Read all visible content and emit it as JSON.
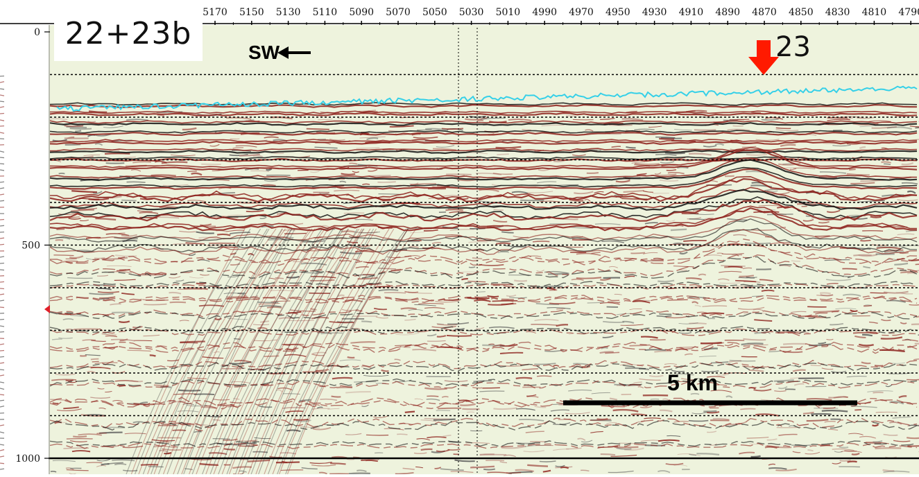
{
  "title": "22+23b",
  "direction_label": "SW",
  "marker": {
    "label": "23",
    "color": "#ff1a00",
    "position_trace": 4870
  },
  "scale_bar": {
    "label": "5 km"
  },
  "trace_axis": {
    "labels": [
      "5170",
      "5150",
      "5130",
      "5110",
      "5090",
      "5070",
      "5050",
      "5030",
      "5010",
      "4990",
      "4970",
      "4950",
      "4930",
      "4910",
      "4890",
      "4870",
      "4850",
      "4830",
      "4810",
      "4790"
    ]
  },
  "depth_axis": {
    "labels": [
      "0",
      "500",
      "1000"
    ]
  },
  "colors": {
    "background": "#eef3dd",
    "trough": "#8c1f1a",
    "peak": "#111111",
    "seafloor_line": "#35d0e8",
    "gridline": "#000000"
  }
}
